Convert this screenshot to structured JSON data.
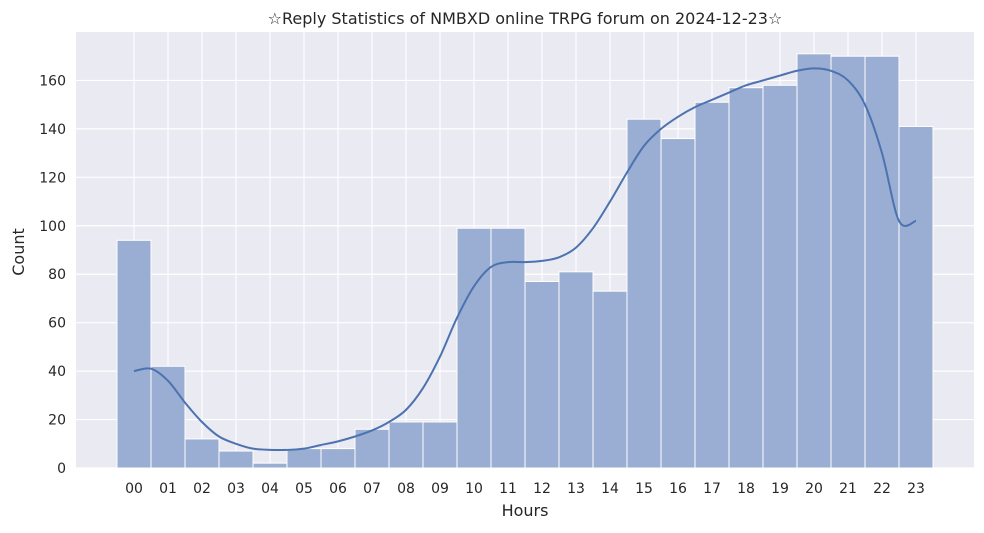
{
  "chart_data": {
    "type": "bar",
    "title": "☆Reply Statistics of NMBXD online TRPG forum on 2024-12-23☆",
    "xlabel": "Hours",
    "ylabel": "Count",
    "categories": [
      "00",
      "01",
      "02",
      "03",
      "04",
      "05",
      "06",
      "07",
      "08",
      "09",
      "10",
      "11",
      "12",
      "13",
      "14",
      "15",
      "16",
      "17",
      "18",
      "19",
      "20",
      "21",
      "22",
      "23"
    ],
    "values": [
      94,
      42,
      12,
      7,
      2,
      8,
      8,
      16,
      19,
      19,
      99,
      99,
      77,
      81,
      73,
      144,
      136,
      151,
      157,
      158,
      171,
      170,
      170,
      141
    ],
    "ylim": [
      0,
      180
    ],
    "yticks": [
      0,
      20,
      40,
      60,
      80,
      100,
      120,
      140,
      160
    ],
    "grid": true,
    "kde_curve": {
      "x": [
        0.0,
        0.5,
        1,
        1.5,
        2,
        2.5,
        3,
        3.5,
        4,
        4.5,
        5,
        5.5,
        6,
        6.5,
        7,
        7.5,
        8,
        8.5,
        9,
        9.5,
        10,
        10.5,
        11,
        11.5,
        12,
        12.5,
        13,
        13.5,
        14,
        14.5,
        15,
        15.5,
        16,
        16.5,
        17,
        17.5,
        18,
        18.5,
        19,
        19.5,
        20,
        20.5,
        21,
        21.5,
        22,
        22.5,
        23.0
      ],
      "y": [
        40,
        41,
        36,
        27,
        19,
        13,
        10,
        8,
        7.5,
        7.5,
        8,
        9.5,
        11,
        13,
        15.5,
        19,
        24,
        33,
        46,
        62,
        75,
        83,
        85,
        85,
        85.5,
        87,
        91,
        99,
        110,
        122,
        133,
        140,
        145,
        149,
        152,
        155,
        158,
        160,
        162,
        164,
        165,
        164,
        160,
        150,
        130,
        102,
        102
      ]
    },
    "colors": {
      "bar_fill": "#99aed2",
      "bar_stroke": "#ffffff",
      "line": "#4c72b0",
      "plot_bg": "#eaeaf2",
      "grid": "#ffffff"
    }
  }
}
